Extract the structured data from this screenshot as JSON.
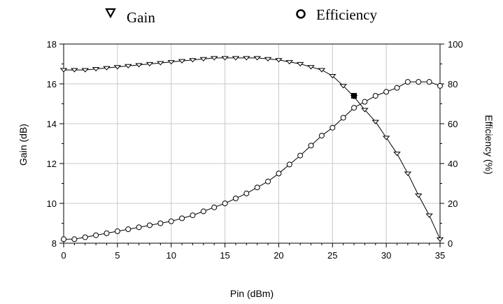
{
  "chart_data": {
    "type": "line",
    "xlabel": "Pin (dBm)",
    "ylabel": "Gain (dB)",
    "y2label": "Efficiency (%)",
    "xlim": [
      0,
      35
    ],
    "ylim": [
      8,
      18
    ],
    "y2lim": [
      0,
      100
    ],
    "xticks": [
      "0",
      "5",
      "10",
      "15",
      "20",
      "25",
      "30",
      "35"
    ],
    "yticks": [
      "8",
      "10",
      "12",
      "14",
      "16",
      "18"
    ],
    "y2ticks": [
      "0",
      "20",
      "40",
      "60",
      "80",
      "100"
    ],
    "grid": true,
    "legend_position": "top",
    "series": [
      {
        "name": "Gain",
        "axis": "left",
        "marker": "triangle-down",
        "x": [
          0,
          1,
          2,
          3,
          4,
          5,
          6,
          7,
          8,
          9,
          10,
          11,
          12,
          13,
          14,
          15,
          16,
          17,
          18,
          19,
          20,
          21,
          22,
          23,
          24,
          25,
          26,
          27,
          28,
          29,
          30,
          31,
          32,
          33,
          34,
          35
        ],
        "values": [
          16.7,
          16.7,
          16.7,
          16.75,
          16.8,
          16.85,
          16.9,
          16.95,
          17.0,
          17.05,
          17.1,
          17.15,
          17.2,
          17.25,
          17.3,
          17.3,
          17.3,
          17.3,
          17.3,
          17.25,
          17.2,
          17.1,
          17.0,
          16.85,
          16.7,
          16.4,
          15.9,
          15.35,
          14.7,
          14.1,
          13.3,
          12.5,
          11.5,
          10.4,
          9.4,
          8.2
        ]
      },
      {
        "name": "Efficiency",
        "axis": "right",
        "marker": "circle",
        "x": [
          0,
          1,
          2,
          3,
          4,
          5,
          6,
          7,
          8,
          9,
          10,
          11,
          12,
          13,
          14,
          15,
          16,
          17,
          18,
          19,
          20,
          21,
          22,
          23,
          24,
          25,
          26,
          27,
          28,
          29,
          30,
          31,
          32,
          33,
          34,
          35
        ],
        "values": [
          2,
          2,
          3,
          4,
          5,
          6,
          7,
          8,
          9,
          10,
          11,
          12.5,
          14,
          16,
          18,
          20,
          22.5,
          25,
          28,
          31,
          35,
          39.5,
          44,
          49,
          54,
          58,
          63,
          68,
          71,
          74,
          76,
          78,
          81,
          81,
          81,
          79
        ]
      }
    ],
    "intersection": {
      "x": 27,
      "y": 15.4
    }
  },
  "colors": {
    "line": "#000000",
    "grid": "#c8c8c8",
    "marker_fill": "#ffffff",
    "intersection": "#000000"
  }
}
